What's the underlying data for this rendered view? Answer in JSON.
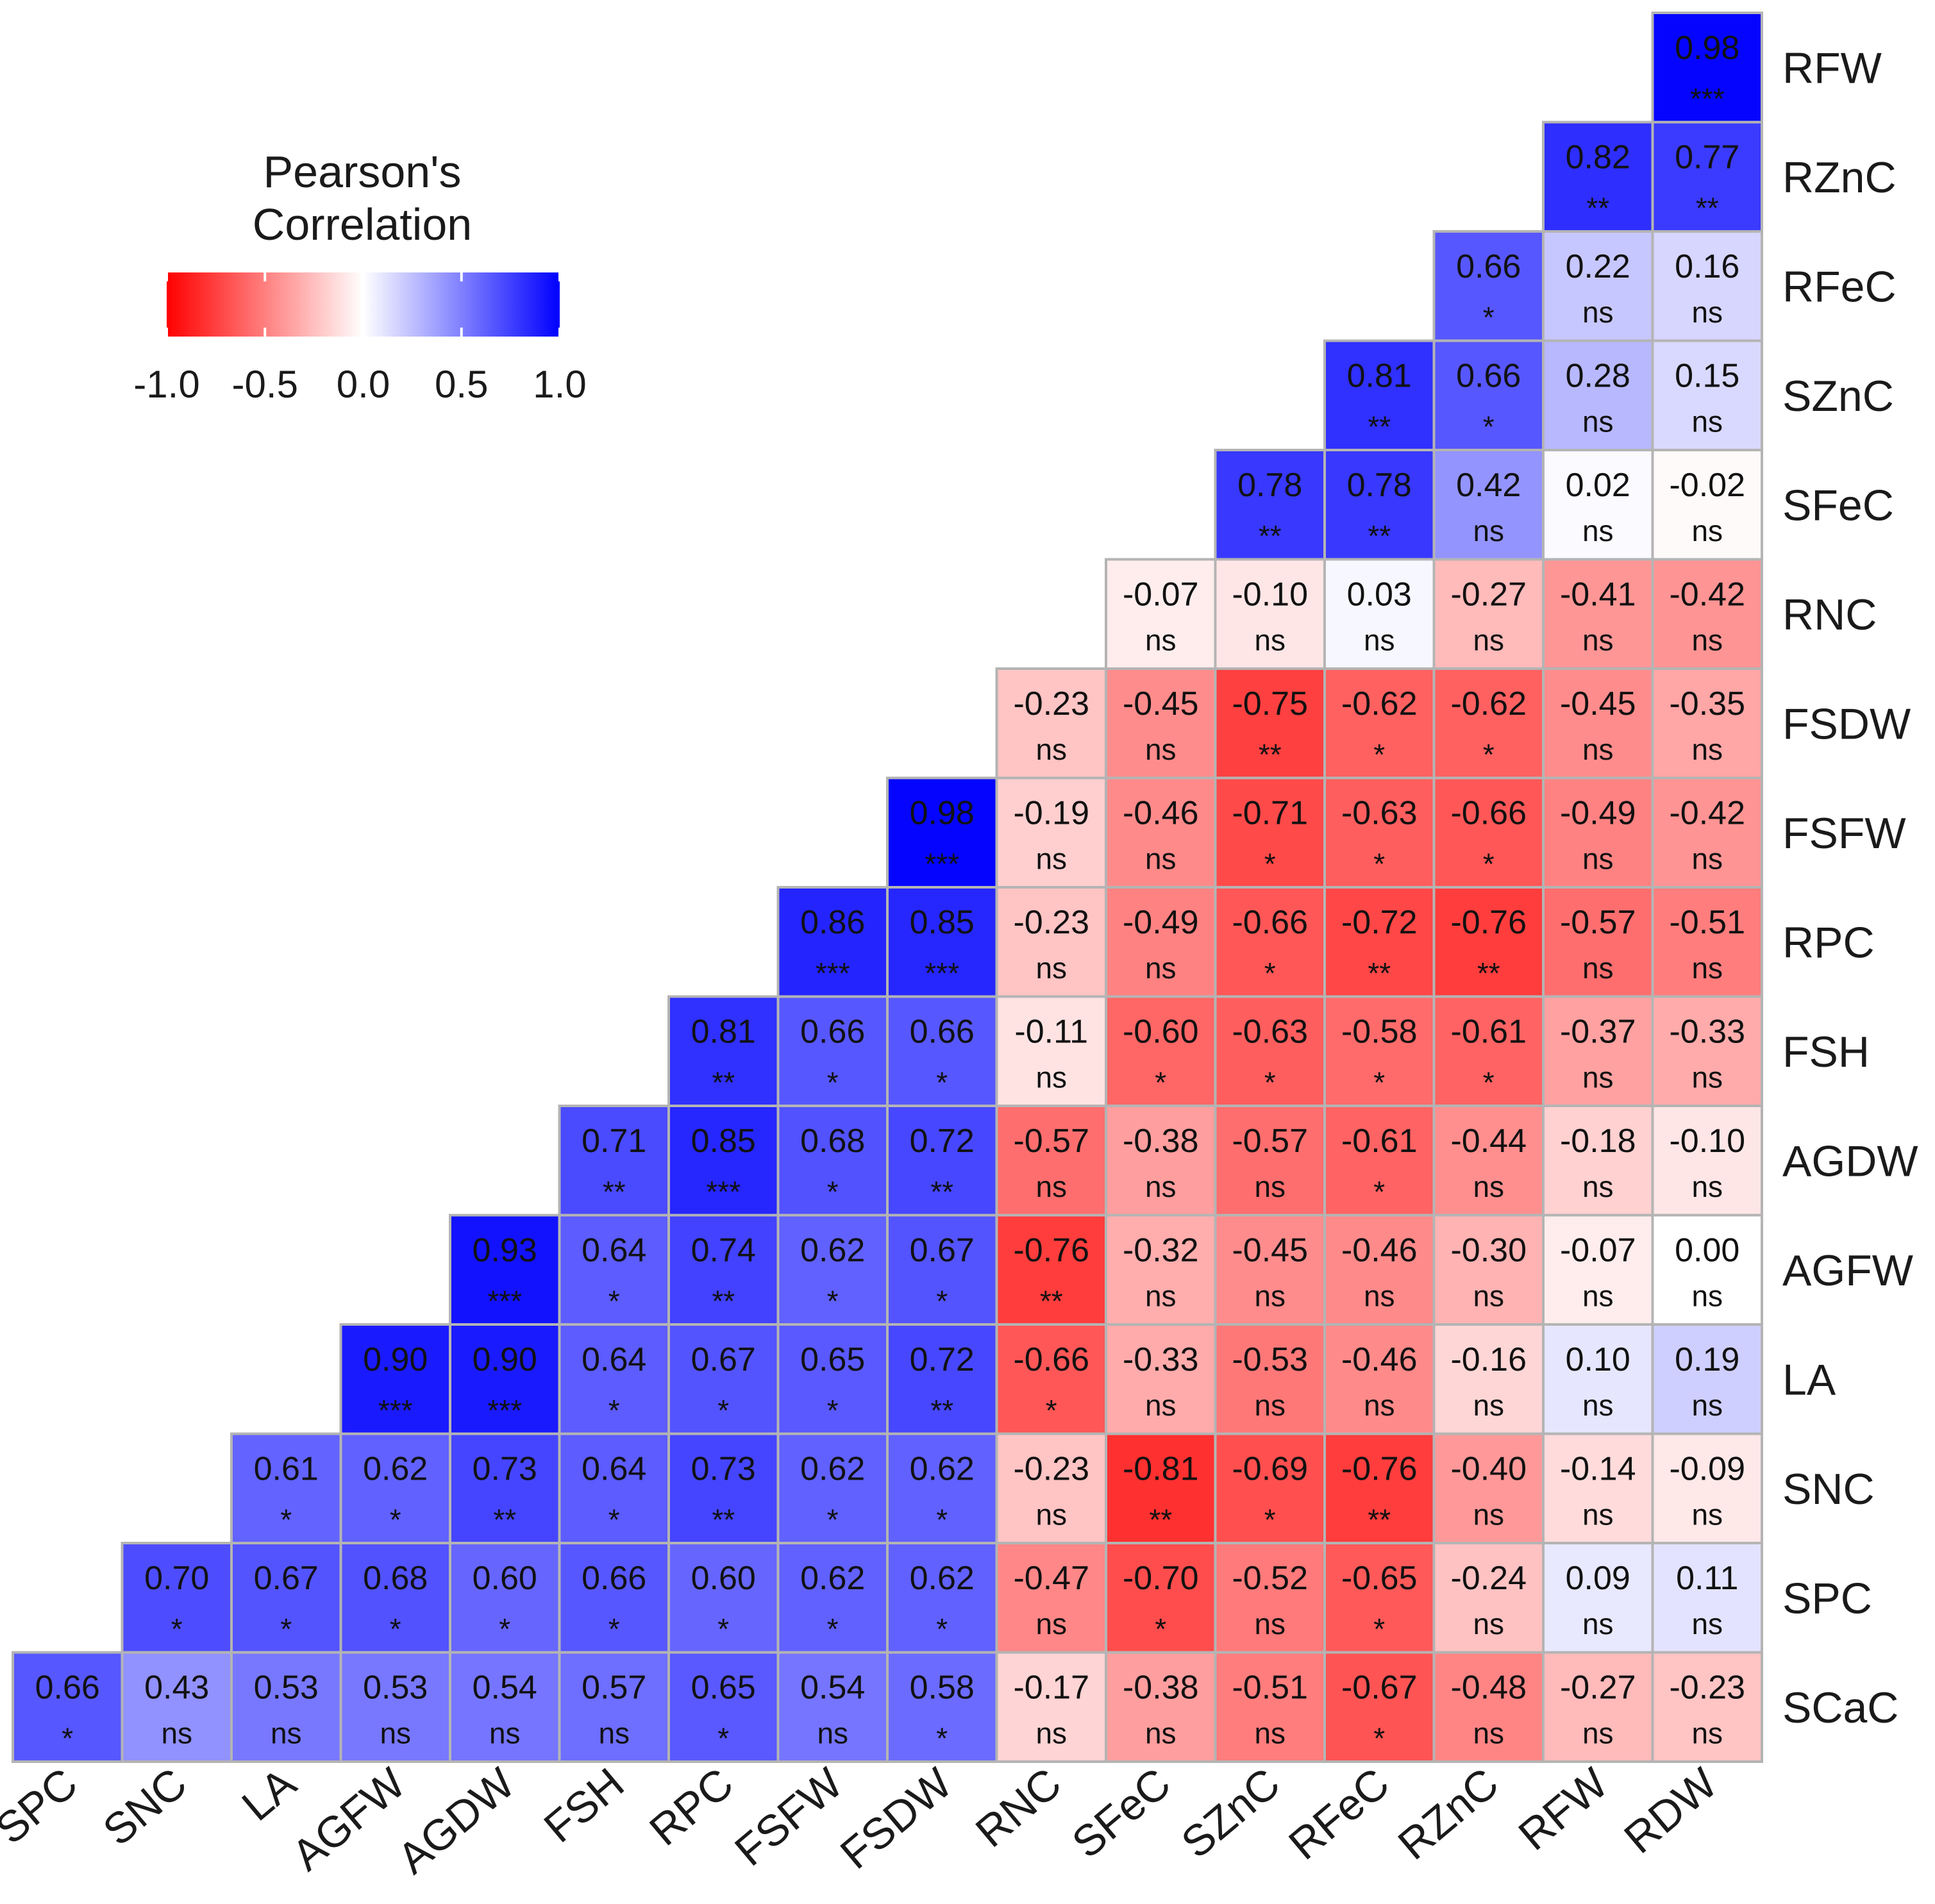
{
  "chart_data": {
    "type": "heatmap",
    "title": "",
    "legend": {
      "title_lines": [
        "Pearson's",
        "Correlation"
      ],
      "ticks": [
        "-1.0",
        "-0.5",
        "0.0",
        "0.5",
        "1.0"
      ],
      "tick_values": [
        -1.0,
        -0.5,
        0.0,
        0.5,
        1.0
      ],
      "low_color": "#ff0000",
      "mid_color": "#ffffff",
      "high_color": "#0000ff",
      "placement": "top-left"
    },
    "columns": [
      "SPC",
      "SNC",
      "LA",
      "AGFW",
      "AGDW",
      "FSH",
      "RPC",
      "FSFW",
      "FSDW",
      "RNC",
      "SFeC",
      "SZnC",
      "RFeC",
      "RZnC",
      "RFW",
      "RDW"
    ],
    "rows": [
      "RFW",
      "RZnC",
      "RFeC",
      "SZnC",
      "SFeC",
      "RNC",
      "FSDW",
      "FSFW",
      "RPC",
      "FSH",
      "AGDW",
      "AGFW",
      "LA",
      "SNC",
      "SPC",
      "SCaC"
    ],
    "cells": [
      [
        null,
        null,
        null,
        null,
        null,
        null,
        null,
        null,
        null,
        null,
        null,
        null,
        null,
        null,
        null,
        [
          "0.98",
          "***"
        ]
      ],
      [
        null,
        null,
        null,
        null,
        null,
        null,
        null,
        null,
        null,
        null,
        null,
        null,
        null,
        null,
        [
          "0.82",
          "**"
        ],
        [
          "0.77",
          "**"
        ]
      ],
      [
        null,
        null,
        null,
        null,
        null,
        null,
        null,
        null,
        null,
        null,
        null,
        null,
        null,
        [
          "0.66",
          "*"
        ],
        [
          "0.22",
          "ns"
        ],
        [
          "0.16",
          "ns"
        ]
      ],
      [
        null,
        null,
        null,
        null,
        null,
        null,
        null,
        null,
        null,
        null,
        null,
        null,
        [
          "0.81",
          "**"
        ],
        [
          "0.66",
          "*"
        ],
        [
          "0.28",
          "ns"
        ],
        [
          "0.15",
          "ns"
        ]
      ],
      [
        null,
        null,
        null,
        null,
        null,
        null,
        null,
        null,
        null,
        null,
        null,
        [
          "0.78",
          "**"
        ],
        [
          "0.78",
          "**"
        ],
        [
          "0.42",
          "ns"
        ],
        [
          "0.02",
          "ns"
        ],
        [
          "-0.02",
          "ns"
        ]
      ],
      [
        null,
        null,
        null,
        null,
        null,
        null,
        null,
        null,
        null,
        null,
        [
          "-0.07",
          "ns"
        ],
        [
          "-0.10",
          "ns"
        ],
        [
          "0.03",
          "ns"
        ],
        [
          "-0.27",
          "ns"
        ],
        [
          "-0.41",
          "ns"
        ],
        [
          "-0.42",
          "ns"
        ]
      ],
      [
        null,
        null,
        null,
        null,
        null,
        null,
        null,
        null,
        null,
        [
          "-0.23",
          "ns"
        ],
        [
          "-0.45",
          "ns"
        ],
        [
          "-0.75",
          "**"
        ],
        [
          "-0.62",
          "*"
        ],
        [
          "-0.62",
          "*"
        ],
        [
          "-0.45",
          "ns"
        ],
        [
          "-0.35",
          "ns"
        ]
      ],
      [
        null,
        null,
        null,
        null,
        null,
        null,
        null,
        null,
        [
          "0.98",
          "***"
        ],
        [
          "-0.19",
          "ns"
        ],
        [
          "-0.46",
          "ns"
        ],
        [
          "-0.71",
          "*"
        ],
        [
          "-0.63",
          "*"
        ],
        [
          "-0.66",
          "*"
        ],
        [
          "-0.49",
          "ns"
        ],
        [
          "-0.42",
          "ns"
        ]
      ],
      [
        null,
        null,
        null,
        null,
        null,
        null,
        null,
        [
          "0.86",
          "***"
        ],
        [
          "0.85",
          "***"
        ],
        [
          "-0.23",
          "ns"
        ],
        [
          "-0.49",
          "ns"
        ],
        [
          "-0.66",
          "*"
        ],
        [
          "-0.72",
          "**"
        ],
        [
          "-0.76",
          "**"
        ],
        [
          "-0.57",
          "ns"
        ],
        [
          "-0.51",
          "ns"
        ]
      ],
      [
        null,
        null,
        null,
        null,
        null,
        null,
        [
          "0.81",
          "**"
        ],
        [
          "0.66",
          "*"
        ],
        [
          "0.66",
          "*"
        ],
        [
          "-0.11",
          "ns"
        ],
        [
          "-0.60",
          "*"
        ],
        [
          "-0.63",
          "*"
        ],
        [
          "-0.58",
          "*"
        ],
        [
          "-0.61",
          "*"
        ],
        [
          "-0.37",
          "ns"
        ],
        [
          "-0.33",
          "ns"
        ]
      ],
      [
        null,
        null,
        null,
        null,
        null,
        [
          "0.71",
          "**"
        ],
        [
          "0.85",
          "***"
        ],
        [
          "0.68",
          "*"
        ],
        [
          "0.72",
          "**"
        ],
        [
          "-0.57",
          "ns"
        ],
        [
          "-0.38",
          "ns"
        ],
        [
          "-0.57",
          "ns"
        ],
        [
          "-0.61",
          "*"
        ],
        [
          "-0.44",
          "ns"
        ],
        [
          "-0.18",
          "ns"
        ],
        [
          "-0.10",
          "ns"
        ]
      ],
      [
        null,
        null,
        null,
        null,
        [
          "0.93",
          "***"
        ],
        [
          "0.64",
          "*"
        ],
        [
          "0.74",
          "**"
        ],
        [
          "0.62",
          "*"
        ],
        [
          "0.67",
          "*"
        ],
        [
          "-0.76",
          "**"
        ],
        [
          "-0.32",
          "ns"
        ],
        [
          "-0.45",
          "ns"
        ],
        [
          "-0.46",
          "ns"
        ],
        [
          "-0.30",
          "ns"
        ],
        [
          "-0.07",
          "ns"
        ],
        [
          "0.00",
          "ns"
        ]
      ],
      [
        null,
        null,
        null,
        [
          "0.90",
          "***"
        ],
        [
          "0.90",
          "***"
        ],
        [
          "0.64",
          "*"
        ],
        [
          "0.67",
          "*"
        ],
        [
          "0.65",
          "*"
        ],
        [
          "0.72",
          "**"
        ],
        [
          "-0.66",
          "*"
        ],
        [
          "-0.33",
          "ns"
        ],
        [
          "-0.53",
          "ns"
        ],
        [
          "-0.46",
          "ns"
        ],
        [
          "-0.16",
          "ns"
        ],
        [
          "0.10",
          "ns"
        ],
        [
          "0.19",
          "ns"
        ]
      ],
      [
        null,
        null,
        [
          "0.61",
          "*"
        ],
        [
          "0.62",
          "*"
        ],
        [
          "0.73",
          "**"
        ],
        [
          "0.64",
          "*"
        ],
        [
          "0.73",
          "**"
        ],
        [
          "0.62",
          "*"
        ],
        [
          "0.62",
          "*"
        ],
        [
          "-0.23",
          "ns"
        ],
        [
          "-0.81",
          "**"
        ],
        [
          "-0.69",
          "*"
        ],
        [
          "-0.76",
          "**"
        ],
        [
          "-0.40",
          "ns"
        ],
        [
          "-0.14",
          "ns"
        ],
        [
          "-0.09",
          "ns"
        ]
      ],
      [
        null,
        [
          "0.70",
          "*"
        ],
        [
          "0.67",
          "*"
        ],
        [
          "0.68",
          "*"
        ],
        [
          "0.60",
          "*"
        ],
        [
          "0.66",
          "*"
        ],
        [
          "0.60",
          "*"
        ],
        [
          "0.62",
          "*"
        ],
        [
          "0.62",
          "*"
        ],
        [
          "-0.47",
          "ns"
        ],
        [
          "-0.70",
          "*"
        ],
        [
          "-0.52",
          "ns"
        ],
        [
          "-0.65",
          "*"
        ],
        [
          "-0.24",
          "ns"
        ],
        [
          "0.09",
          "ns"
        ],
        [
          "0.11",
          "ns"
        ]
      ],
      [
        [
          "0.66",
          "*"
        ],
        [
          "0.43",
          "ns"
        ],
        [
          "0.53",
          "ns"
        ],
        [
          "0.53",
          "ns"
        ],
        [
          "0.54",
          "ns"
        ],
        [
          "0.57",
          "ns"
        ],
        [
          "0.65",
          "*"
        ],
        [
          "0.54",
          "ns"
        ],
        [
          "0.58",
          "*"
        ],
        [
          "-0.17",
          "ns"
        ],
        [
          "-0.38",
          "ns"
        ],
        [
          "-0.51",
          "ns"
        ],
        [
          "-0.67",
          "*"
        ],
        [
          "-0.48",
          "ns"
        ],
        [
          "-0.27",
          "ns"
        ],
        [
          "-0.23",
          "ns"
        ]
      ]
    ]
  }
}
